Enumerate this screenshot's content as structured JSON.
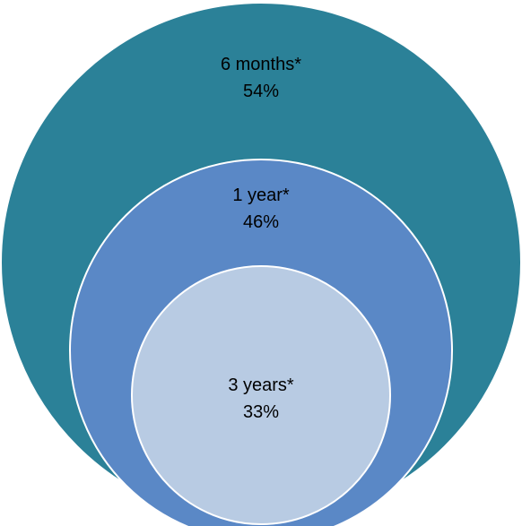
{
  "diagram": {
    "type": "nested-circles",
    "rings": [
      {
        "label": "6 months*",
        "value": "54%",
        "color": "#2b8198"
      },
      {
        "label": "1 year*",
        "value": "46%",
        "color": "#5a88c6"
      },
      {
        "label": "3 years*",
        "value": "33%",
        "color": "#b8cbe3"
      }
    ],
    "outline_color": "#ffffff"
  }
}
